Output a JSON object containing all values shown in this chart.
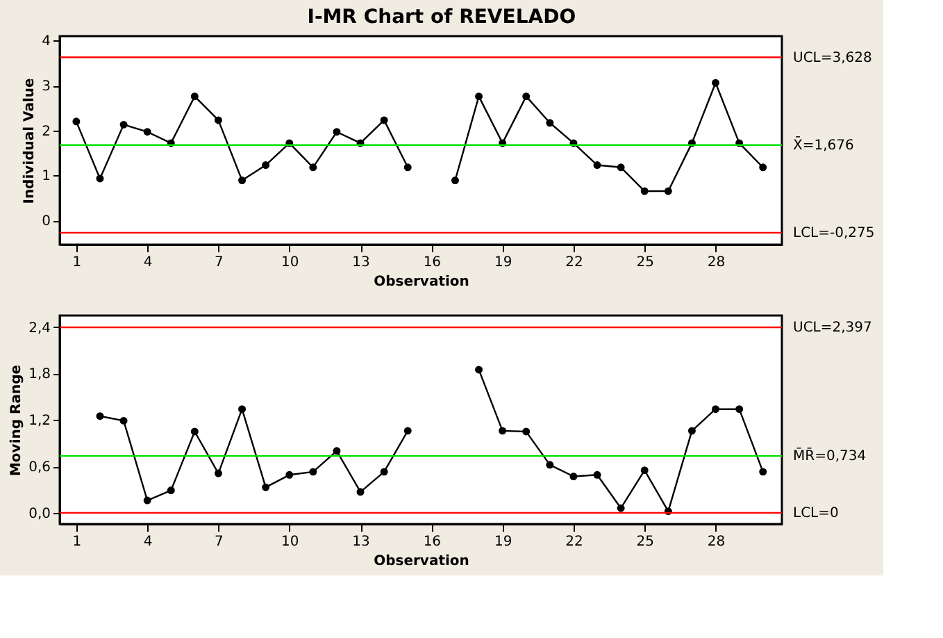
{
  "chart_data": [
    {
      "type": "line",
      "title": "I-MR Chart of REVELADO",
      "xlabel": "Observation",
      "ylabel": "Individual Value",
      "x": [
        1,
        2,
        3,
        4,
        5,
        6,
        7,
        8,
        9,
        10,
        11,
        12,
        13,
        14,
        15,
        16,
        17,
        18,
        19,
        20,
        21,
        22,
        23,
        24,
        25,
        26,
        27,
        28,
        29,
        30
      ],
      "series": [
        {
          "color": "#000000",
          "values": [
            2.2,
            0.93,
            2.13,
            1.97,
            1.72,
            2.76,
            2.23,
            0.89,
            1.23,
            1.72,
            1.18,
            1.97,
            1.72,
            2.23,
            1.18,
            null,
            0.89,
            2.76,
            1.72,
            2.76,
            2.17,
            1.72,
            1.23,
            1.18,
            0.65,
            0.65,
            1.72,
            3.06,
            1.72,
            1.18
          ]
        }
      ],
      "marker": "circle",
      "xlim": [
        0.3,
        30.8
      ],
      "xticks": [
        1,
        4,
        7,
        10,
        13,
        16,
        19,
        22,
        25,
        28
      ],
      "ylim": [
        -0.54,
        4.1
      ],
      "yticks": [
        0,
        1,
        2,
        3,
        4
      ],
      "ref_lines": [
        {
          "axis": "y",
          "value": 3.628,
          "label": "UCL=3,628",
          "color": "#ff0000"
        },
        {
          "axis": "y",
          "value": 1.676,
          "label": "X̄=1,676",
          "color": "#00e000"
        },
        {
          "axis": "y",
          "value": -0.275,
          "label": "LCL=-0,275",
          "color": "#ff0000"
        }
      ]
    },
    {
      "type": "line",
      "xlabel": "Observation",
      "ylabel": "Moving Range",
      "series": [
        {
          "color": "#000000",
          "x": [
            2,
            3,
            4,
            5,
            6,
            7,
            8,
            9,
            10,
            11,
            12,
            13,
            14,
            15,
            16,
            17,
            18,
            19,
            20,
            21,
            22,
            23,
            24,
            25,
            26,
            27,
            28,
            29,
            30
          ],
          "values": [
            1.25,
            1.19,
            0.16,
            0.29,
            1.05,
            0.51,
            1.34,
            0.33,
            0.49,
            0.53,
            0.8,
            0.27,
            0.53,
            1.06,
            null,
            null,
            1.85,
            1.06,
            1.05,
            0.62,
            0.47,
            0.49,
            0.06,
            0.55,
            0.02,
            1.06,
            1.34,
            1.34,
            0.53
          ]
        }
      ],
      "marker": "circle",
      "xlim": [
        0.3,
        30.8
      ],
      "xticks": [
        1,
        4,
        7,
        10,
        13,
        16,
        19,
        22,
        25,
        28
      ],
      "ylim": [
        -0.145,
        2.55
      ],
      "yticks": [
        {
          "value": 0,
          "label": "0,0"
        },
        {
          "value": 0.6,
          "label": "0,6"
        },
        {
          "value": 1.2,
          "label": "1,2"
        },
        {
          "value": 1.8,
          "label": "1,8"
        },
        {
          "value": 2.4,
          "label": "2,4"
        }
      ],
      "ref_lines": [
        {
          "axis": "y",
          "value": 2.397,
          "label": "UCL=2,397",
          "color": "#ff0000"
        },
        {
          "axis": "y",
          "value": 0.734,
          "label": "M̄R̄=0,734",
          "color": "#00e000"
        },
        {
          "axis": "y",
          "value": 0,
          "label": "LCL=0",
          "color": "#ff0000"
        }
      ]
    }
  ]
}
